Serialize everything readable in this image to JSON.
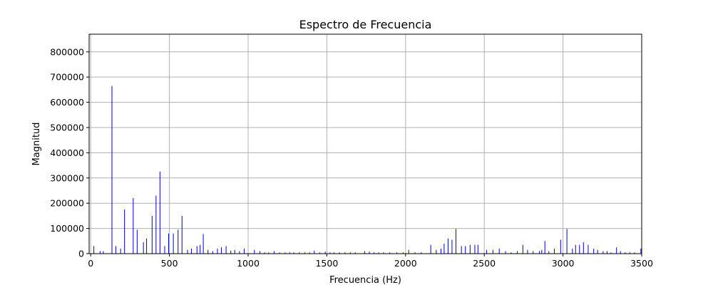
{
  "chart_data": {
    "type": "bar",
    "title": "Espectro de Frecuencia",
    "xlabel": "Frecuencia (Hz)",
    "ylabel": "Magnitud",
    "xlim": [
      -10,
      3500
    ],
    "ylim": [
      0,
      870000
    ],
    "xticks": [
      0,
      500,
      1000,
      1500,
      2000,
      2500,
      3000,
      3500
    ],
    "yticks": [
      0,
      100000,
      200000,
      300000,
      400000,
      500000,
      600000,
      700000,
      800000
    ],
    "grid": true,
    "bar_color": "#0000cc",
    "x": [
      20,
      60,
      80,
      135,
      160,
      190,
      215,
      270,
      295,
      335,
      355,
      390,
      415,
      440,
      470,
      495,
      525,
      555,
      580,
      615,
      640,
      675,
      695,
      715,
      745,
      775,
      805,
      830,
      860,
      890,
      915,
      945,
      975,
      1040,
      1075,
      1105,
      1130,
      1165,
      1200,
      1235,
      1265,
      1290,
      1325,
      1360,
      1390,
      1420,
      1455,
      1490,
      1520,
      1545,
      1580,
      1615,
      1650,
      1680,
      1740,
      1770,
      1800,
      1830,
      1860,
      1900,
      1945,
      1985,
      2020,
      2060,
      2100,
      2160,
      2195,
      2225,
      2245,
      2270,
      2295,
      2320,
      2355,
      2380,
      2410,
      2440,
      2460,
      2515,
      2555,
      2595,
      2635,
      2670,
      2710,
      2745,
      2775,
      2810,
      2850,
      2865,
      2885,
      2910,
      2945,
      2985,
      3025,
      3060,
      3080,
      3105,
      3130,
      3160,
      3195,
      3220,
      3255,
      3280,
      3305,
      3340,
      3365,
      3395,
      3425,
      3455,
      3495
    ],
    "values": [
      30000,
      10000,
      10000,
      665000,
      30000,
      20000,
      175000,
      220000,
      95000,
      45000,
      60000,
      150000,
      230000,
      325000,
      30000,
      80000,
      80000,
      95000,
      150000,
      15000,
      20000,
      30000,
      35000,
      78000,
      15000,
      10000,
      20000,
      25000,
      30000,
      12000,
      15000,
      10000,
      20000,
      15000,
      10000,
      5000,
      5000,
      10000,
      5000,
      5000,
      5000,
      5000,
      5000,
      5000,
      5000,
      12000,
      5000,
      8000,
      5000,
      5000,
      5000,
      5000,
      5000,
      5000,
      10000,
      8000,
      5000,
      5000,
      5000,
      5000,
      5000,
      5000,
      15000,
      5000,
      5000,
      35000,
      15000,
      20000,
      40000,
      60000,
      55000,
      98000,
      30000,
      30000,
      35000,
      35000,
      35000,
      15000,
      15000,
      20000,
      10000,
      5000,
      10000,
      35000,
      15000,
      10000,
      10000,
      15000,
      50000,
      10000,
      20000,
      55000,
      98000,
      20000,
      35000,
      35000,
      45000,
      35000,
      20000,
      15000,
      10000,
      10000,
      5000,
      25000,
      10000,
      5000,
      5000,
      5000,
      20000
    ]
  }
}
